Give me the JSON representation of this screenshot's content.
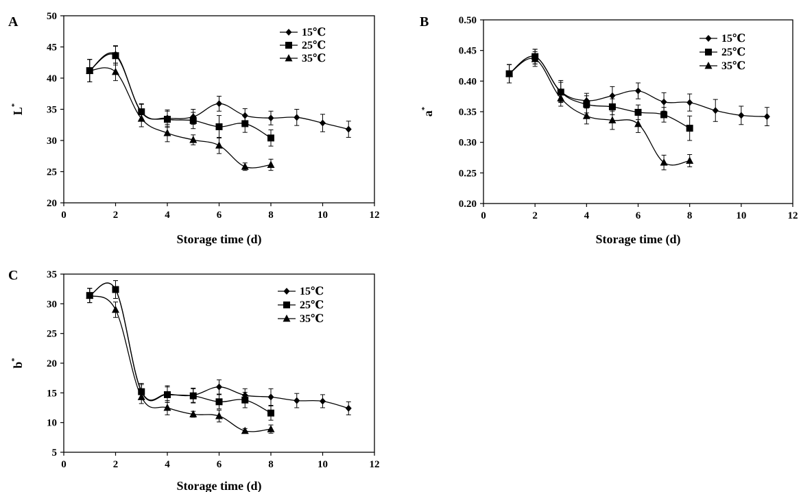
{
  "chart_data": [
    {
      "type": "line",
      "panel": "A",
      "xlabel": "Storage time (d)",
      "ylabel": "L*",
      "xlim": [
        0,
        12
      ],
      "ylim": [
        20,
        50
      ],
      "xticks": [
        0,
        2,
        4,
        6,
        8,
        10,
        12
      ],
      "yticks": [
        20,
        25,
        30,
        35,
        40,
        45,
        50
      ],
      "legend_position": "top-right",
      "grid": false,
      "series": [
        {
          "name": "15℃",
          "marker": "diamond",
          "x": [
            1,
            2,
            3,
            4,
            5,
            6,
            7,
            8,
            9,
            10,
            11
          ],
          "y": [
            41.2,
            43.8,
            34.5,
            33.6,
            33.8,
            35.9,
            34.0,
            33.6,
            33.7,
            32.8,
            31.8
          ],
          "err": [
            1.8,
            1.4,
            1.3,
            1.3,
            1.2,
            1.2,
            1.1,
            1.1,
            1.3,
            1.4,
            1.3
          ]
        },
        {
          "name": "25℃",
          "marker": "square",
          "x": [
            1,
            2,
            3,
            4,
            5,
            6,
            7,
            8
          ],
          "y": [
            41.2,
            43.6,
            34.6,
            33.4,
            33.2,
            32.2,
            32.7,
            30.4
          ],
          "err": [
            1.8,
            1.5,
            1.3,
            1.3,
            1.3,
            1.8,
            1.4,
            1.3
          ]
        },
        {
          "name": "35℃",
          "marker": "triangle",
          "x": [
            1,
            2,
            3,
            4,
            5,
            6,
            7,
            8
          ],
          "y": [
            41.2,
            41.0,
            33.5,
            31.2,
            30.1,
            29.2,
            25.8,
            26.1
          ],
          "err": [
            1.8,
            1.4,
            1.3,
            1.4,
            0.8,
            1.3,
            0.6,
            0.9
          ]
        }
      ]
    },
    {
      "type": "line",
      "panel": "B",
      "xlabel": "Storage time (d)",
      "ylabel": "a*",
      "xlim": [
        0,
        12
      ],
      "ylim": [
        0.2,
        0.5
      ],
      "xticks": [
        0,
        2,
        4,
        6,
        8,
        10,
        12
      ],
      "yticks": [
        "0.20",
        "0.25",
        "0.30",
        "0.35",
        "0.40",
        "0.45",
        "0.50"
      ],
      "legend_position": "top-right",
      "grid": false,
      "series": [
        {
          "name": "15℃",
          "marker": "diamond",
          "x": [
            1,
            2,
            3,
            4,
            5,
            6,
            7,
            8,
            9,
            10,
            11
          ],
          "y": [
            0.412,
            0.44,
            0.383,
            0.368,
            0.376,
            0.384,
            0.366,
            0.365,
            0.352,
            0.344,
            0.342
          ],
          "err": [
            0.015,
            0.012,
            0.018,
            0.012,
            0.015,
            0.013,
            0.015,
            0.014,
            0.018,
            0.015,
            0.015
          ]
        },
        {
          "name": "25℃",
          "marker": "square",
          "x": [
            1,
            2,
            3,
            4,
            5,
            6,
            7,
            8
          ],
          "y": [
            0.412,
            0.44,
            0.382,
            0.362,
            0.358,
            0.349,
            0.345,
            0.323
          ],
          "err": [
            0.015,
            0.012,
            0.016,
            0.014,
            0.013,
            0.012,
            0.012,
            0.02
          ]
        },
        {
          "name": "35℃",
          "marker": "triangle",
          "x": [
            1,
            2,
            3,
            4,
            5,
            6,
            7,
            8
          ],
          "y": [
            0.412,
            0.436,
            0.372,
            0.343,
            0.336,
            0.33,
            0.267,
            0.27
          ],
          "err": [
            0.015,
            0.012,
            0.013,
            0.013,
            0.015,
            0.014,
            0.012,
            0.01
          ]
        }
      ]
    },
    {
      "type": "line",
      "panel": "C",
      "xlabel": "Storage time (d)",
      "ylabel": "b*",
      "xlim": [
        0,
        12
      ],
      "ylim": [
        5,
        35
      ],
      "xticks": [
        0,
        2,
        4,
        6,
        8,
        10,
        12
      ],
      "yticks": [
        5,
        10,
        15,
        20,
        25,
        30,
        35
      ],
      "legend_position": "top-right",
      "grid": false,
      "series": [
        {
          "name": "15℃",
          "marker": "diamond",
          "x": [
            1,
            2,
            3,
            4,
            5,
            6,
            7,
            8,
            9,
            10,
            11
          ],
          "y": [
            31.4,
            32.4,
            15.3,
            14.8,
            14.6,
            16.0,
            14.6,
            14.3,
            13.7,
            13.6,
            12.4
          ],
          "err": [
            1.2,
            1.5,
            1.3,
            1.4,
            1.2,
            1.2,
            1.1,
            1.4,
            1.2,
            1.1,
            1.1
          ]
        },
        {
          "name": "25℃",
          "marker": "square",
          "x": [
            1,
            2,
            3,
            4,
            5,
            6,
            7,
            8
          ],
          "y": [
            31.4,
            32.4,
            15.2,
            14.7,
            14.5,
            13.5,
            13.8,
            11.6
          ],
          "err": [
            1.2,
            1.5,
            1.2,
            1.3,
            1.2,
            1.2,
            1.3,
            1.2
          ]
        },
        {
          "name": "35℃",
          "marker": "triangle",
          "x": [
            1,
            2,
            3,
            4,
            5,
            6,
            7,
            8
          ],
          "y": [
            31.4,
            29.0,
            14.3,
            12.5,
            11.4,
            11.1,
            8.6,
            8.9
          ],
          "err": [
            1.2,
            1.3,
            1.1,
            1.2,
            0.5,
            1.0,
            0.4,
            0.7
          ]
        }
      ]
    }
  ],
  "panels": [
    {
      "letter": "A",
      "ylabel_base": "L",
      "ylabel_sup": "*",
      "xlabel": "Storage time (d)",
      "legend": [
        "15℃",
        "25℃",
        "35℃"
      ]
    },
    {
      "letter": "B",
      "ylabel_base": "a",
      "ylabel_sup": "*",
      "xlabel": "Storage time (d)",
      "legend": [
        "15℃",
        "25℃",
        "35℃"
      ]
    },
    {
      "letter": "C",
      "ylabel_base": "b",
      "ylabel_sup": "*",
      "xlabel": "Storage time (d)",
      "legend": [
        "15℃",
        "25℃",
        "35℃"
      ]
    }
  ]
}
